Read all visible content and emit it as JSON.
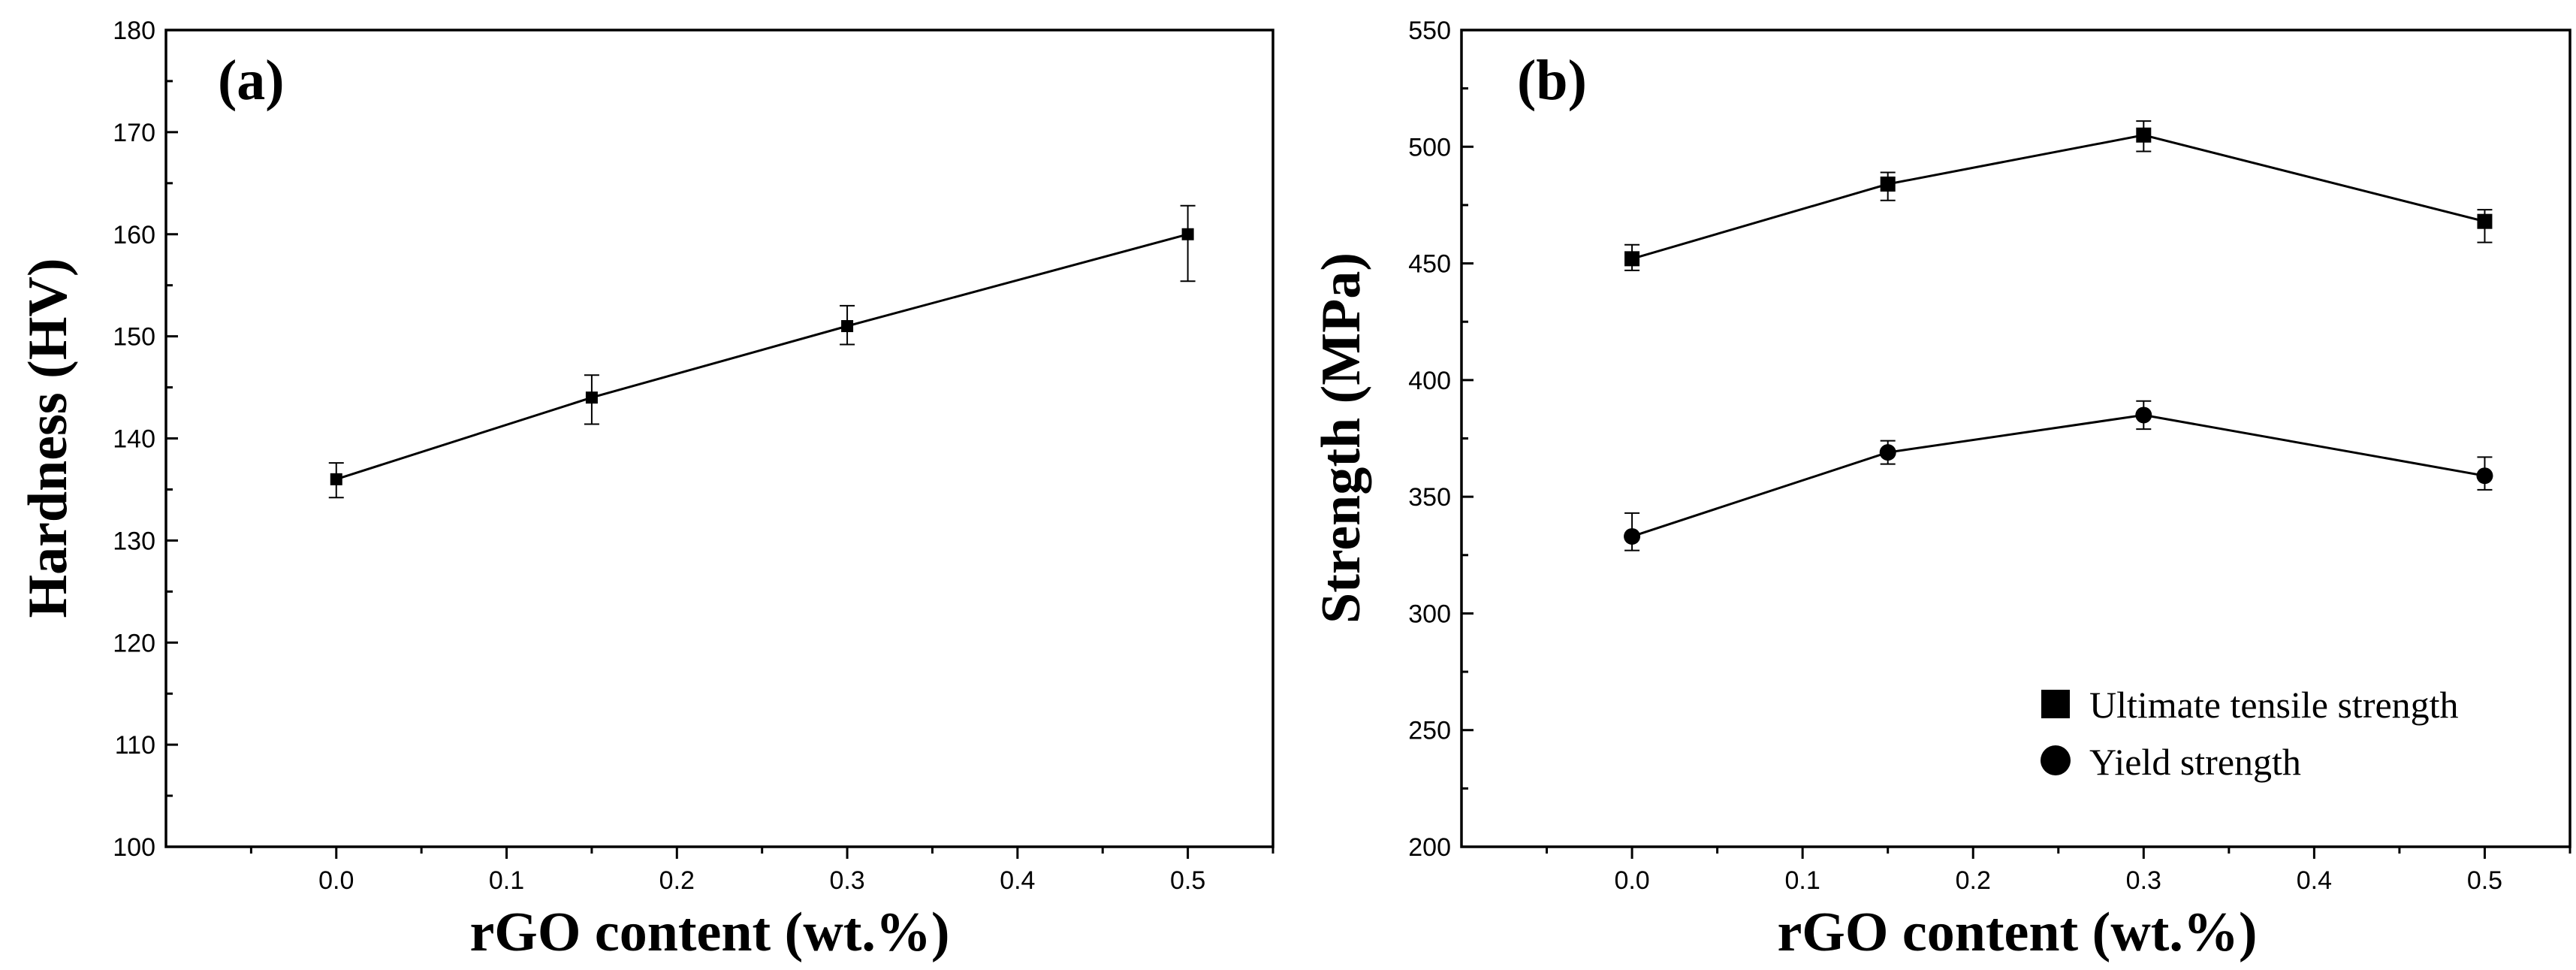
{
  "chart_data": [
    {
      "panel": "(a)",
      "type": "line",
      "title": "",
      "xlabel": "rGO content (wt.%)",
      "ylabel": "Hardness (HV)",
      "xlim": [
        -0.1,
        0.55
      ],
      "ylim": [
        100,
        180
      ],
      "xticks": [
        0.0,
        0.1,
        0.2,
        0.3,
        0.4,
        0.5
      ],
      "xtick_labels": [
        "0.0",
        "0.1",
        "0.2",
        "0.3",
        "0.4",
        "0.5"
      ],
      "yticks": [
        100,
        110,
        120,
        130,
        140,
        150,
        160,
        170,
        180
      ],
      "ytick_labels": [
        "100",
        "110",
        "120",
        "130",
        "140",
        "150",
        "160",
        "170",
        "180"
      ],
      "grid": false,
      "series": [
        {
          "name": "Hardness",
          "marker": "square",
          "x": [
            0.0,
            0.15,
            0.3,
            0.5
          ],
          "values": [
            136,
            144,
            151,
            160
          ],
          "err_low": [
            1.8,
            2.6,
            1.8,
            4.6
          ],
          "err_high": [
            1.6,
            2.2,
            2.0,
            2.8
          ]
        }
      ]
    },
    {
      "panel": "(b)",
      "type": "line",
      "title": "",
      "xlabel": "rGO content (wt.%)",
      "ylabel": "Strength (MPa)",
      "xlim": [
        -0.1,
        0.55
      ],
      "ylim": [
        200,
        550
      ],
      "xticks": [
        0.0,
        0.1,
        0.2,
        0.3,
        0.4,
        0.5
      ],
      "xtick_labels": [
        "0.0",
        "0.1",
        "0.2",
        "0.3",
        "0.4",
        "0.5"
      ],
      "yticks": [
        200,
        250,
        300,
        350,
        400,
        450,
        500,
        550
      ],
      "ytick_labels": [
        "200",
        "250",
        "300",
        "350",
        "400",
        "450",
        "500",
        "550"
      ],
      "grid": false,
      "legend_position": "bottom-right",
      "series": [
        {
          "name": "Ultimate tensile strength",
          "marker": "square",
          "x": [
            0.0,
            0.15,
            0.3,
            0.5
          ],
          "values": [
            452,
            484,
            505,
            468
          ],
          "err_low": [
            5,
            7,
            7,
            9
          ],
          "err_high": [
            6,
            5,
            6,
            5
          ]
        },
        {
          "name": "Yield strength",
          "marker": "circle",
          "x": [
            0.0,
            0.15,
            0.3,
            0.5
          ],
          "values": [
            333,
            369,
            385,
            359
          ],
          "err_low": [
            6,
            5,
            6,
            6
          ],
          "err_high": [
            10,
            5,
            6,
            8
          ]
        }
      ]
    }
  ]
}
